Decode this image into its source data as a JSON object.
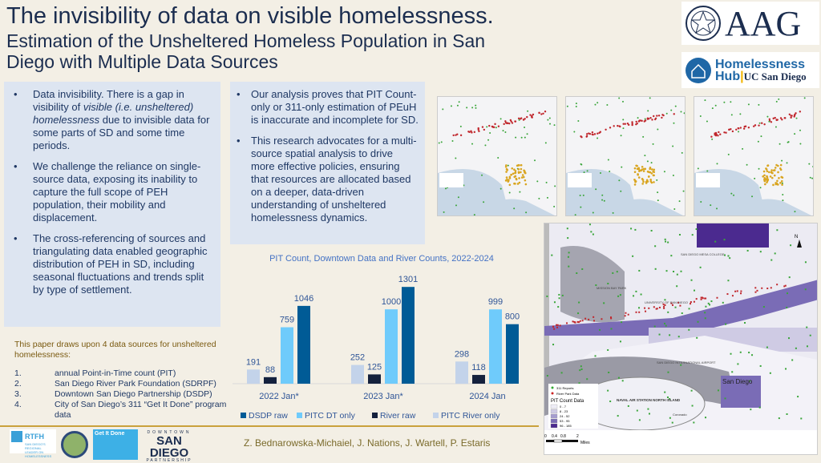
{
  "header": {
    "title": "The invisibility of data on visible homelessness.",
    "subtitle": "Estimation of the Unsheltered Homeless Population in San Diego with Multiple Data Sources"
  },
  "logos": {
    "aag": "AAG",
    "hub_line1": "Homelessness",
    "hub_line2": "Hub",
    "hub_ucsd": "UC San Diego",
    "rtfh": "RTFH",
    "rtfh_sub": "SAN DIEGO'S REGIONAL LEADER ON HOMELESSNESS",
    "gid": "Get It Done",
    "dsdp_top": "DOWNTOWN",
    "dsdp_mid": "SAN DIEGO",
    "dsdp_bot": "PARTNERSHIP"
  },
  "left_bullets": [
    {
      "pre": "Data invisibility. There is a gap in visibility of ",
      "em": "visible (i.e. unsheltered) homelessness",
      "post": " due to invisible data for some parts of SD and some time periods."
    },
    {
      "pre": "We challenge the reliance on single-source data, exposing its inability to capture the full scope of PEH population, their mobility and displacement.",
      "em": "",
      "post": ""
    },
    {
      "pre": "The cross-referencing of sources and triangulating data enabled geographic distribution of PEH in SD, including seasonal fluctuations and trends split by type of settlement.",
      "em": "",
      "post": ""
    }
  ],
  "mid_bullets": [
    "Our analysis proves that PIT Count-only or 311-only estimation of PEuH is inaccurate and incomplete for SD.",
    "This research advocates for a multi-source spatial analysis to drive more effective policies, ensuring that resources are allocated based on a deeper, data-driven understanding of unsheltered homelessness dynamics."
  ],
  "sources": {
    "heading": "This paper draws upon 4 data sources for unsheltered homelessness:",
    "items": [
      {
        "n": "1.",
        "t": "annual Point-in-Time count (PIT)"
      },
      {
        "n": "2.",
        "t": "San Diego River Park Foundation (SDRPF)"
      },
      {
        "n": "3.",
        "t": "Downtown San Diego Partnership (DSDP)"
      },
      {
        "n": "4.",
        "t": "City of San Diego’s 311 “Get It Done” program data"
      }
    ]
  },
  "authors": "Z. Bednarowska-Michaiel, J. Nations, J. Wartell, P. Estaris",
  "map": {
    "labels": [
      "SAN DIEGO MESA COLLEGE",
      "MISSION BAY PARK",
      "UNIVERSITY OF SAN DIEGO",
      "SAN DIEGO INTERNATIONAL AIRPORT",
      "NAVAL AIR STATION NORTH ISLAND",
      "San Diego",
      "Coronado"
    ],
    "legend": {
      "r311": "311 Reports",
      "river": "River Park Data",
      "title": "PIT Count Data",
      "classes": [
        "0 - 7",
        "8 - 23",
        "24 - 52",
        "53 - 95",
        "96 - 185"
      ],
      "class_colors": [
        "#eeedf6",
        "#cfcbe4",
        "#a59dcf",
        "#7a6cb6",
        "#4b2a8f"
      ]
    },
    "scale": [
      "0",
      "0.4",
      "0.8",
      "2"
    ],
    "scale_unit": "Miles",
    "north": "N"
  },
  "chart_data": {
    "type": "bar",
    "title": "PIT Count, Downtown Data and River Counts, 2022-2024",
    "categories": [
      "2022 Jan*",
      "2023 Jan*",
      "2024 Jan"
    ],
    "series": [
      {
        "name": "PITC River only",
        "color": "#c3d3ea",
        "values": [
          191,
          252,
          298
        ]
      },
      {
        "name": "River raw",
        "color": "#14213d",
        "values": [
          88,
          125,
          118
        ]
      },
      {
        "name": "PITC DT only",
        "color": "#6fcbfb",
        "values": [
          759,
          1000,
          999
        ]
      },
      {
        "name": "DSDP raw",
        "color": "#005b96",
        "values": [
          1046,
          1301,
          800
        ]
      }
    ],
    "legend_order": [
      "DSDP raw",
      "PITC DT only",
      "River raw",
      "PITC River only"
    ],
    "ylim": [
      0,
      1400
    ],
    "grid": false,
    "legend": "bottom"
  }
}
